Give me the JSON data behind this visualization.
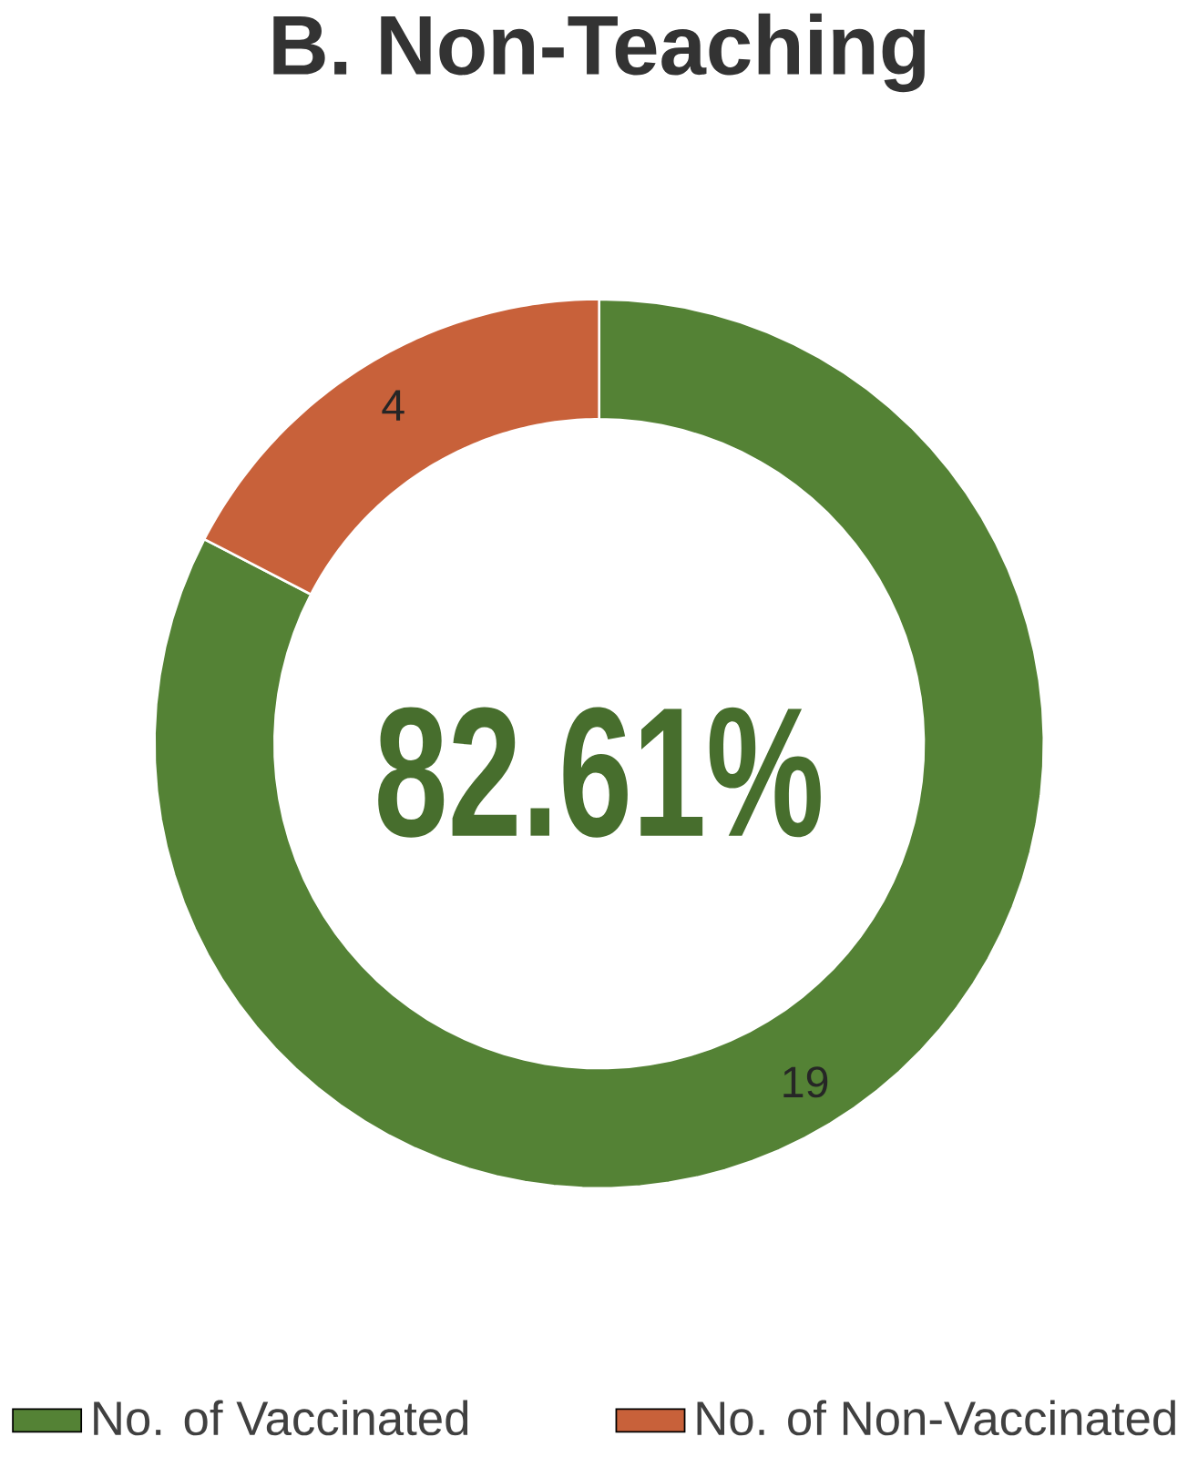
{
  "chart_data": {
    "type": "donut",
    "title": "B. Non-Teaching",
    "categories": [
      "No. of Vaccinated",
      "No. of Non-Vaccinated"
    ],
    "values": [
      19,
      4
    ],
    "colors": [
      "#548235",
      "#c8613a"
    ],
    "data_labels": true,
    "legend": "bottom",
    "annotations": [
      "82.61%"
    ]
  }
}
